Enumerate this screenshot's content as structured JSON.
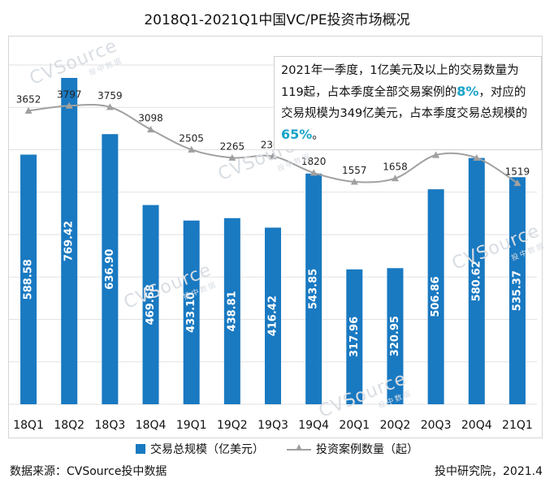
{
  "chart_data": {
    "type": "bar",
    "title": "2018Q1-2021Q1中国VC/PE投资市场概况",
    "categories": [
      "18Q1",
      "18Q2",
      "18Q3",
      "18Q4",
      "19Q1",
      "19Q2",
      "19Q3",
      "19Q4",
      "20Q1",
      "20Q2",
      "20Q3",
      "20Q4",
      "21Q1"
    ],
    "series": [
      {
        "name": "交易总规模（亿美元）",
        "type": "bar",
        "axis": "left",
        "color": "#1979c1",
        "values": [
          588.58,
          769.42,
          636.9,
          469.68,
          433.1,
          438.81,
          416.42,
          543.85,
          317.96,
          320.95,
          506.86,
          580.62,
          535.37
        ],
        "labels": [
          "588.58",
          "769.42",
          "636.90",
          "469.68",
          "433.10",
          "438.81",
          "416.42",
          "543.85",
          "317.96",
          "320.95",
          "506.86",
          "580.62",
          "535.37"
        ]
      },
      {
        "name": "投资案例数量（起）",
        "type": "line",
        "axis": "right",
        "color": "#a0a0a0",
        "values": [
          3652,
          3797,
          3759,
          3098,
          2505,
          2265,
          2309,
          1820,
          1557,
          1658,
          2344,
          2262,
          1519
        ]
      }
    ],
    "ylim_left": [
      0,
      800
    ],
    "ylim_right": [
      -5000,
      5000
    ],
    "grid": true,
    "legend": "bottom"
  },
  "annotation": {
    "text_1": "2021年一季度，1亿美元及以上的交易数量为119起，占本季度全部交易案例的",
    "highlight_1": "8%",
    "text_2": "，对应的交易规模为349亿美元，占本季度交易总规模的",
    "highlight_2": "65%",
    "text_3": "。"
  },
  "watermark": {
    "brand": "CVSource",
    "sub": "投中数据"
  },
  "footer": {
    "source": "数据来源：CVSource投中数据",
    "org": "投中研究院，2021.4"
  }
}
